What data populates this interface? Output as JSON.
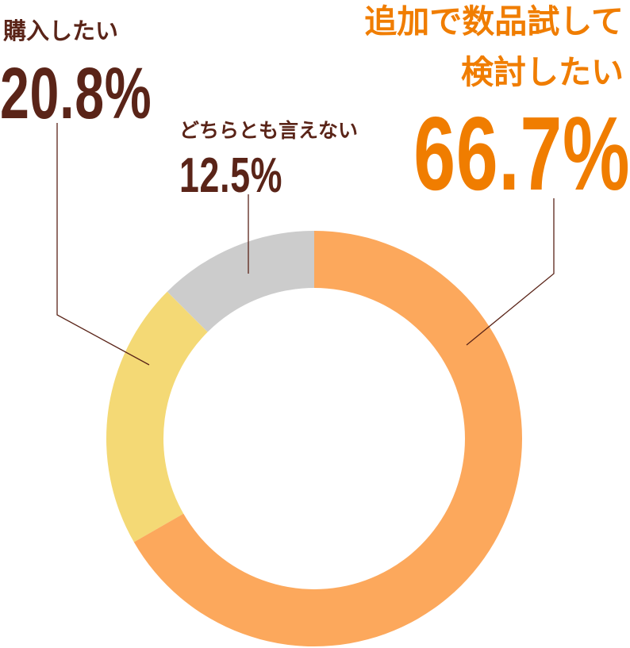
{
  "chart_data": {
    "type": "pie",
    "categories": [
      "追加で数品試して\n検討したい",
      "購入したい",
      "どちらとも言えない"
    ],
    "values": [
      66.7,
      20.8,
      12.5
    ],
    "value_labels": [
      "66.7%",
      "20.8%",
      "12.5%"
    ],
    "colors": [
      "#fca85c",
      "#f4d975",
      "#cccccc"
    ]
  }
}
